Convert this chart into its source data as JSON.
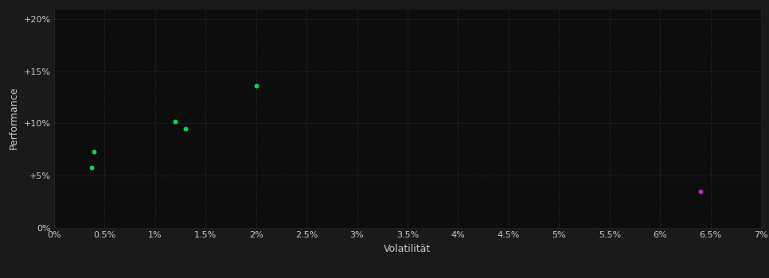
{
  "background_color": "#1a1a1a",
  "plot_bg_color": "#0d0d0d",
  "grid_color": "#2a2a2a",
  "xlabel": "Volatilität",
  "ylabel": "Performance",
  "xlim": [
    0,
    0.07
  ],
  "ylim": [
    0,
    0.21
  ],
  "xticks": [
    0.0,
    0.005,
    0.01,
    0.015,
    0.02,
    0.025,
    0.03,
    0.035,
    0.04,
    0.045,
    0.05,
    0.055,
    0.06,
    0.065,
    0.07
  ],
  "yticks": [
    0.0,
    0.05,
    0.1,
    0.15,
    0.2
  ],
  "green_points": [
    [
      0.004,
      0.073
    ],
    [
      0.0037,
      0.058
    ],
    [
      0.012,
      0.102
    ],
    [
      0.013,
      0.095
    ],
    [
      0.02,
      0.136
    ]
  ],
  "magenta_points": [
    [
      0.064,
      0.035
    ]
  ],
  "green_color": "#00dd44",
  "magenta_color": "#cc22cc",
  "dot_size": 18,
  "axis_text_color": "#cccccc",
  "axis_fontsize": 8,
  "label_fontsize": 9
}
